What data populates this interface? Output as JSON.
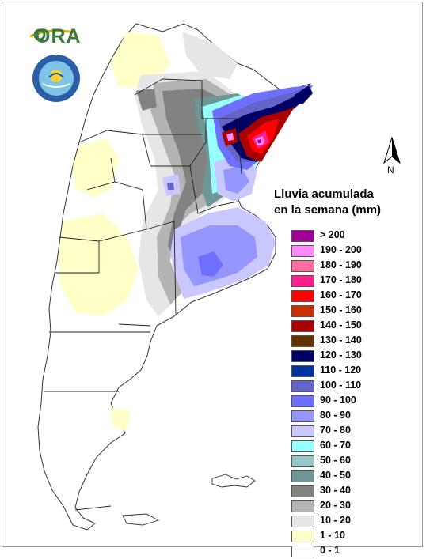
{
  "logo": {
    "text": "ORA"
  },
  "seal": {
    "icon": "national-weather-service-seal-icon"
  },
  "north_arrow": {
    "label": "N"
  },
  "legend": {
    "title_line1": "Lluvia acumulada",
    "title_line2": "en la semana (mm)",
    "classes": [
      {
        "label": "> 200",
        "color": "#a0009a"
      },
      {
        "label": "190 - 200",
        "color": "#ff8cff"
      },
      {
        "label": "180 - 190",
        "color": "#ff6ea0"
      },
      {
        "label": "170 - 180",
        "color": "#ff1f8c"
      },
      {
        "label": "160 - 170",
        "color": "#ff0000"
      },
      {
        "label": "150 - 160",
        "color": "#c83200"
      },
      {
        "label": "140 - 150",
        "color": "#aa0000"
      },
      {
        "label": "130 - 140",
        "color": "#643200"
      },
      {
        "label": "120 - 130",
        "color": "#000064"
      },
      {
        "label": "110 - 120",
        "color": "#0032a0"
      },
      {
        "label": "100 - 110",
        "color": "#6464c8"
      },
      {
        "label": "90 - 100",
        "color": "#6e6eff"
      },
      {
        "label": "80 - 90",
        "color": "#9696ff"
      },
      {
        "label": "70 - 80",
        "color": "#c8c8ff"
      },
      {
        "label": "60 - 70",
        "color": "#96ffff"
      },
      {
        "label": "50 - 60",
        "color": "#96c8c8"
      },
      {
        "label": "40 - 50",
        "color": "#6e9696"
      },
      {
        "label": "30 - 40",
        "color": "#828282"
      },
      {
        "label": "20 - 30",
        "color": "#b4b4b4"
      },
      {
        "label": "10 - 20",
        "color": "#e6e6e6"
      },
      {
        "label": "1 - 10",
        "color": "#ffffc8"
      },
      {
        "label": "0 - 1",
        "color": "#ffffff"
      }
    ]
  }
}
